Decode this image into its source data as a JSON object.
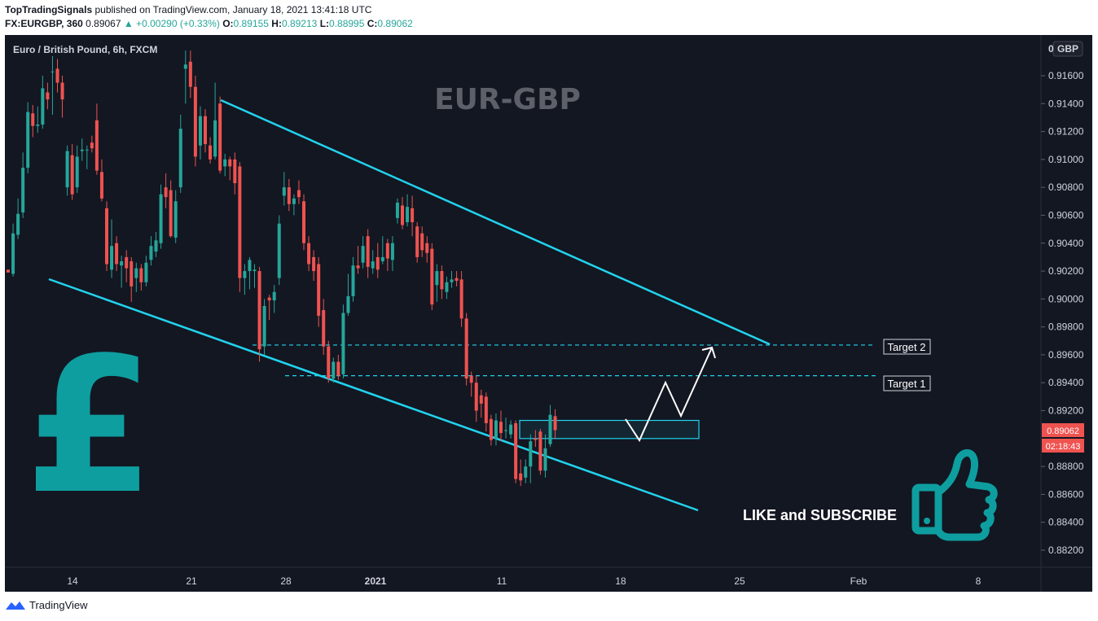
{
  "header": {
    "publisher": "TopTradingSignals",
    "published_text": "published on TradingView.com, January 18, 2021 13:41:18 UTC",
    "symbol": "FX:EURGBP, 360",
    "last": "0.89067",
    "change": "▲ +0.00290 (+0.33%)",
    "o_label": "O:",
    "o_value": "0.89155",
    "h_label": "H:",
    "h_value": "0.89213",
    "l_label": "L:",
    "l_value": "0.88995",
    "c_label": "C:",
    "c_value": "0.89062"
  },
  "chart_data": {
    "type": "candlestick",
    "legend": "Euro / British Pound, 6h, FXCM",
    "title": "EUR-GBP",
    "currency": "GBP",
    "y_ticks": [
      "0.91600",
      "0.91400",
      "0.91200",
      "0.91000",
      "0.90800",
      "0.90600",
      "0.90400",
      "0.90200",
      "0.90000",
      "0.89800",
      "0.89600",
      "0.89400",
      "0.89200",
      "0.88800",
      "0.88600",
      "0.88400",
      "0.88200"
    ],
    "ylim": [
      0.8812,
      0.9184
    ],
    "x_ticks": [
      "14",
      "21",
      "28",
      "2021",
      "11",
      "18",
      "25",
      "Feb",
      "8"
    ],
    "current_price": "0.89062",
    "countdown": "02:18:43",
    "candles": [
      [
        0.9021,
        0.9019,
        0.9021,
        0.9019
      ],
      [
        0.9018,
        0.9047,
        0.9054,
        0.9016
      ],
      [
        0.9046,
        0.9061,
        0.9072,
        0.9043
      ],
      [
        0.9062,
        0.9094,
        0.9105,
        0.9058
      ],
      [
        0.9094,
        0.9134,
        0.9141,
        0.909
      ],
      [
        0.9133,
        0.9124,
        0.9139,
        0.9116
      ],
      [
        0.9124,
        0.9125,
        0.9138,
        0.9119
      ],
      [
        0.9125,
        0.9151,
        0.916,
        0.9122
      ],
      [
        0.9148,
        0.9143,
        0.9155,
        0.9136
      ],
      [
        0.9163,
        0.9163,
        0.9174,
        0.9132
      ],
      [
        0.9165,
        0.9155,
        0.9172,
        0.9148
      ],
      [
        0.9155,
        0.9143,
        0.916,
        0.913
      ],
      [
        0.908,
        0.9106,
        0.911,
        0.9074
      ],
      [
        0.9103,
        0.9075,
        0.9111,
        0.9071
      ],
      [
        0.908,
        0.9102,
        0.911,
        0.9076
      ],
      [
        0.9106,
        0.9107,
        0.9115,
        0.9099
      ],
      [
        0.9107,
        0.9107,
        0.911,
        0.9093
      ],
      [
        0.9112,
        0.9108,
        0.9117,
        0.9105
      ],
      [
        0.9128,
        0.9092,
        0.914,
        0.9089
      ],
      [
        0.9091,
        0.9072,
        0.91,
        0.907
      ],
      [
        0.9065,
        0.9025,
        0.907,
        0.902
      ],
      [
        0.9021,
        0.9038,
        0.9057,
        0.9015
      ],
      [
        0.904,
        0.9025,
        0.9045,
        0.902
      ],
      [
        0.9024,
        0.9027,
        0.9031,
        0.9008
      ],
      [
        0.903,
        0.9022,
        0.9035,
        0.9012
      ],
      [
        0.9027,
        0.9009,
        0.903,
        0.8998
      ],
      [
        0.9015,
        0.9022,
        0.9026,
        0.9005
      ],
      [
        0.9022,
        0.9012,
        0.9025,
        0.9006
      ],
      [
        0.9012,
        0.9026,
        0.9031,
        0.9009
      ],
      [
        0.9028,
        0.9038,
        0.9045,
        0.9024
      ],
      [
        0.9034,
        0.9042,
        0.9048,
        0.903
      ],
      [
        0.904,
        0.9075,
        0.9082,
        0.9036
      ],
      [
        0.908,
        0.9073,
        0.909,
        0.9065
      ],
      [
        0.9078,
        0.9045,
        0.9085,
        0.9044
      ],
      [
        0.9044,
        0.907,
        0.9078,
        0.904
      ],
      [
        0.908,
        0.9122,
        0.9132,
        0.9076
      ],
      [
        0.9165,
        0.9168,
        0.9178,
        0.914
      ],
      [
        0.917,
        0.9152,
        0.9178,
        0.9144
      ],
      [
        0.9152,
        0.9102,
        0.916,
        0.9095
      ],
      [
        0.911,
        0.9131,
        0.9138,
        0.91
      ],
      [
        0.9131,
        0.9111,
        0.9136,
        0.9105
      ],
      [
        0.911,
        0.91,
        0.9116,
        0.9097
      ],
      [
        0.9102,
        0.9128,
        0.9155,
        0.91
      ],
      [
        0.914,
        0.9092,
        0.9145,
        0.909
      ],
      [
        0.9095,
        0.91,
        0.9104,
        0.9088
      ],
      [
        0.91,
        0.9095,
        0.9102,
        0.9085
      ],
      [
        0.91,
        0.9083,
        0.9105,
        0.9075
      ],
      [
        0.9095,
        0.9015,
        0.9098,
        0.9005
      ],
      [
        0.9015,
        0.902,
        0.9025,
        0.9003
      ],
      [
        0.902,
        0.9028,
        0.903,
        0.9007
      ],
      [
        0.902,
        0.9021,
        0.9025,
        0.9008
      ],
      [
        0.902,
        0.8964,
        0.9023,
        0.8955
      ],
      [
        0.8966,
        0.8995,
        0.9,
        0.896
      ],
      [
        0.9001,
        0.8999,
        0.9003,
        0.8985
      ],
      [
        0.8999,
        0.9005,
        0.901,
        0.899
      ],
      [
        0.9015,
        0.9054,
        0.906,
        0.901
      ],
      [
        0.9074,
        0.908,
        0.9091,
        0.9067
      ],
      [
        0.908,
        0.9068,
        0.9086,
        0.9063
      ],
      [
        0.9068,
        0.9072,
        0.9075,
        0.906
      ],
      [
        0.9078,
        0.9073,
        0.9085,
        0.9068
      ],
      [
        0.907,
        0.904,
        0.9075,
        0.9035
      ],
      [
        0.904,
        0.9025,
        0.9045,
        0.902
      ],
      [
        0.903,
        0.902,
        0.9035,
        0.9013
      ],
      [
        0.9025,
        0.8988,
        0.903,
        0.898
      ],
      [
        0.8992,
        0.8966,
        0.9,
        0.896
      ],
      [
        0.8966,
        0.8943,
        0.897,
        0.894
      ],
      [
        0.8943,
        0.8955,
        0.8958,
        0.894
      ],
      [
        0.8955,
        0.8945,
        0.896,
        0.8942
      ],
      [
        0.8946,
        0.899,
        0.8996,
        0.8943
      ],
      [
        0.899,
        0.9002,
        0.9018,
        0.8988
      ],
      [
        0.9002,
        0.9024,
        0.903,
        0.8998
      ],
      [
        0.9024,
        0.9022,
        0.9038,
        0.9018
      ],
      [
        0.9026,
        0.9038,
        0.9045,
        0.9022
      ],
      [
        0.9045,
        0.9023,
        0.905,
        0.9015
      ],
      [
        0.9022,
        0.9027,
        0.9035,
        0.9018
      ],
      [
        0.903,
        0.9021,
        0.904,
        0.9015
      ],
      [
        0.9027,
        0.903,
        0.9045,
        0.9025
      ],
      [
        0.904,
        0.9029,
        0.9043,
        0.902
      ],
      [
        0.9028,
        0.904,
        0.9045,
        0.902
      ],
      [
        0.9058,
        0.9069,
        0.9072,
        0.9054
      ],
      [
        0.9067,
        0.9053,
        0.9073,
        0.905
      ],
      [
        0.9055,
        0.9066,
        0.9075,
        0.9052
      ],
      [
        0.9065,
        0.9055,
        0.9074,
        0.9045
      ],
      [
        0.9052,
        0.903,
        0.9055,
        0.9026
      ],
      [
        0.9047,
        0.9035,
        0.9052,
        0.903
      ],
      [
        0.904,
        0.9033,
        0.9045,
        0.9026
      ],
      [
        0.9036,
        0.8996,
        0.904,
        0.8992
      ],
      [
        0.901,
        0.902,
        0.9025,
        0.8998
      ],
      [
        0.902,
        0.9007,
        0.9024,
        0.9
      ],
      [
        0.9005,
        0.9012,
        0.9016,
        0.9
      ],
      [
        0.9012,
        0.9014,
        0.902,
        0.9008
      ],
      [
        0.9015,
        0.9013,
        0.902,
        0.9009
      ],
      [
        0.9014,
        0.8986,
        0.902,
        0.898
      ],
      [
        0.8986,
        0.8943,
        0.899,
        0.8938
      ],
      [
        0.8945,
        0.894,
        0.8948,
        0.893
      ],
      [
        0.894,
        0.892,
        0.8945,
        0.8912
      ],
      [
        0.8931,
        0.8925,
        0.8935,
        0.8915
      ],
      [
        0.893,
        0.8911,
        0.8933,
        0.8905
      ],
      [
        0.8914,
        0.8899,
        0.8917,
        0.8895
      ],
      [
        0.89,
        0.8913,
        0.8918,
        0.8895
      ],
      [
        0.8912,
        0.8904,
        0.892,
        0.8898
      ],
      [
        0.8906,
        0.8906,
        0.8915,
        0.89
      ],
      [
        0.8903,
        0.891,
        0.8913,
        0.89
      ],
      [
        0.8911,
        0.8871,
        0.8913,
        0.8868
      ],
      [
        0.8875,
        0.887,
        0.8885,
        0.8866
      ],
      [
        0.8872,
        0.888,
        0.8885,
        0.8868
      ],
      [
        0.888,
        0.8898,
        0.8903,
        0.8868
      ],
      [
        0.89,
        0.8899,
        0.8906,
        0.8894
      ],
      [
        0.8905,
        0.8877,
        0.8907,
        0.8874
      ],
      [
        0.8877,
        0.8893,
        0.8903,
        0.8872
      ],
      [
        0.8896,
        0.8917,
        0.8924,
        0.8894
      ],
      [
        0.8916,
        0.8906,
        0.8921,
        0.89
      ]
    ],
    "annotations": {
      "target1_label": "Target 1",
      "target1_price": 0.8945,
      "target2_label": "Target 2",
      "target2_price": 0.8967,
      "support_zone": [
        0.89,
        0.8913
      ],
      "cta_text": "LIKE and SUBSCRIBE",
      "pound_symbol": "£"
    }
  },
  "colors": {
    "bg": "#131722",
    "up": "#26a69a",
    "down": "#ef5350",
    "channel": "#22d3ee",
    "brand_teal": "#0e9ea0",
    "title_gray": "#5d6069"
  },
  "footer": {
    "brand": "TradingView",
    "icon": "tradingview-logo-icon"
  }
}
